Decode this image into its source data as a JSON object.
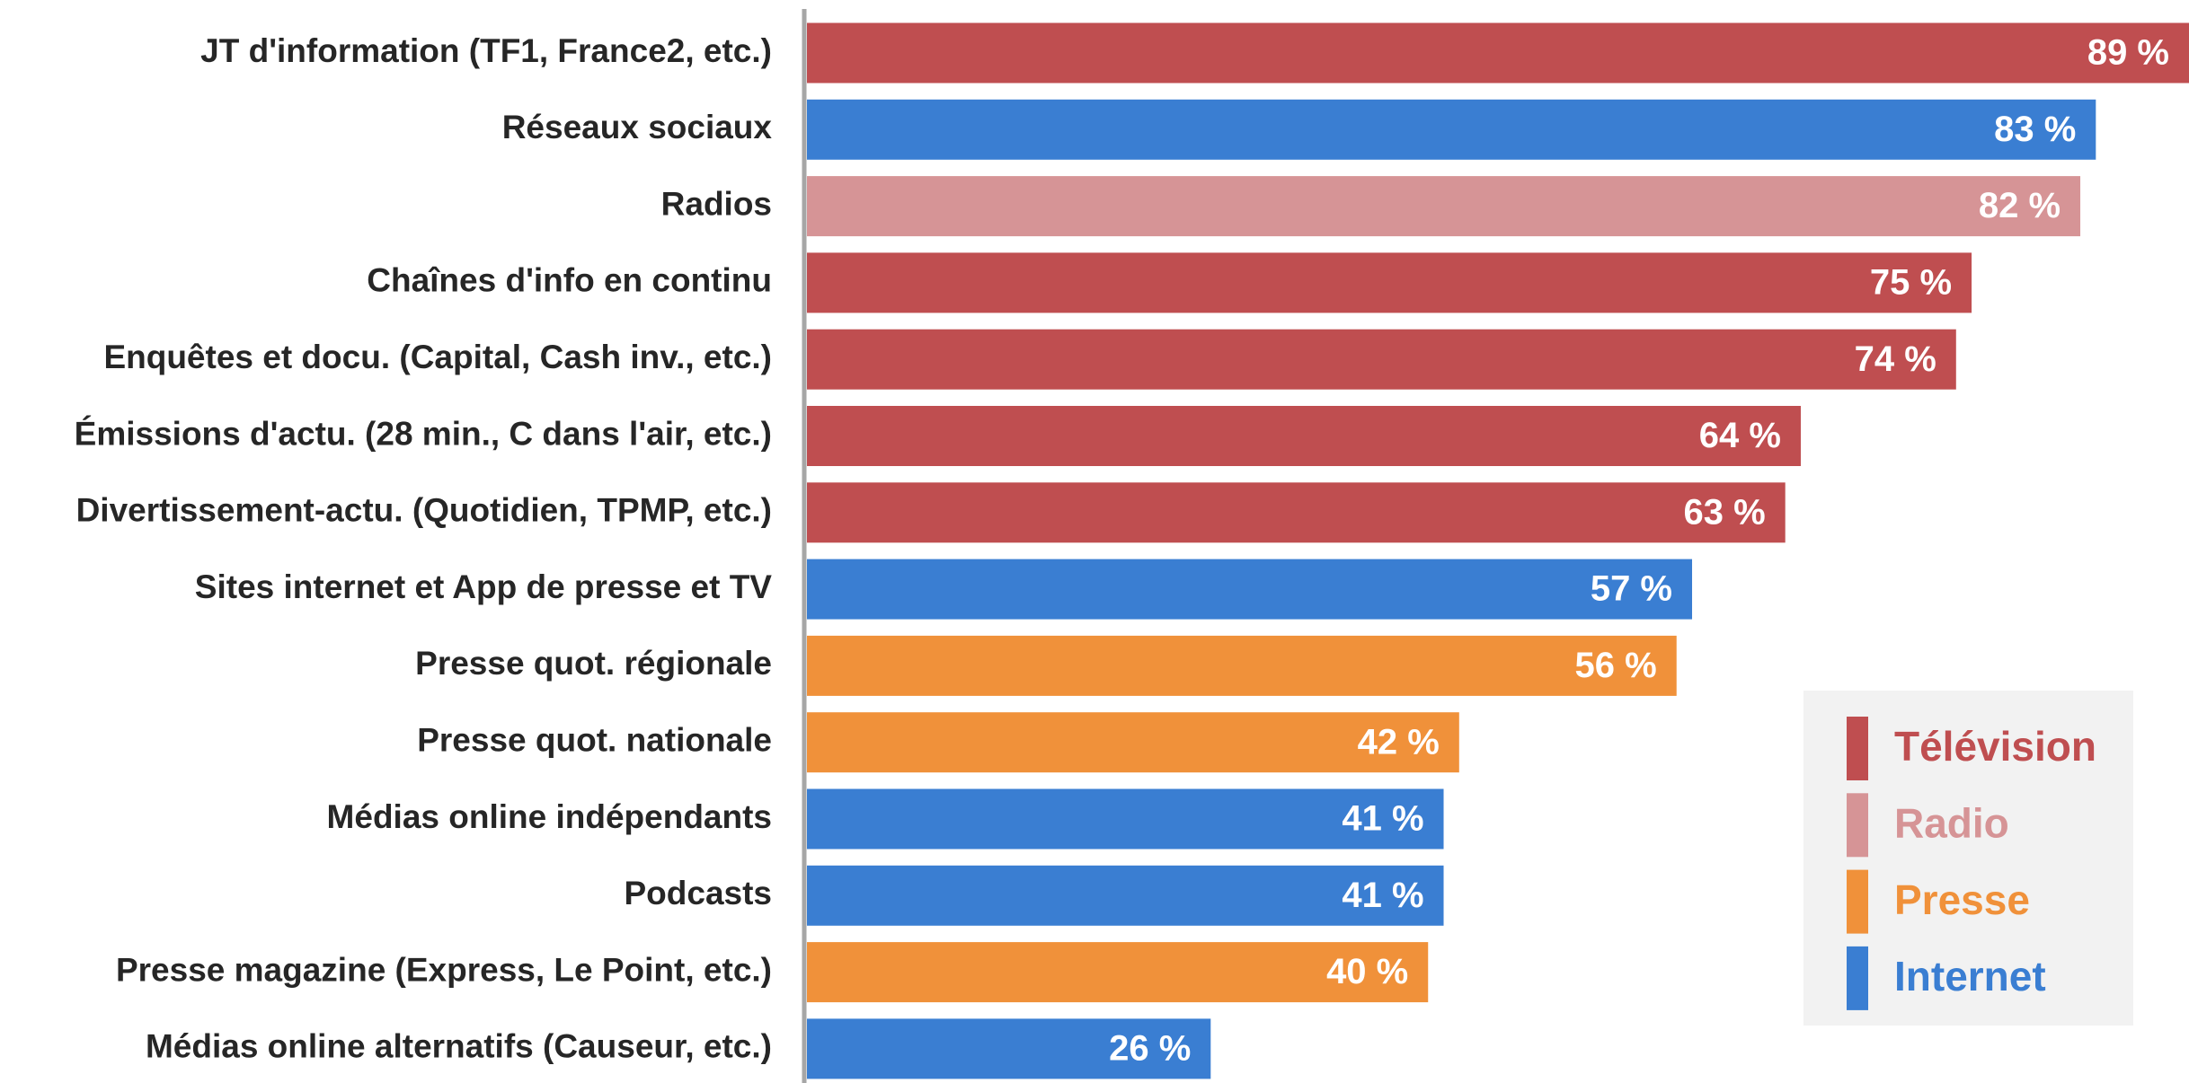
{
  "chart_data": {
    "type": "bar",
    "orientation": "horizontal",
    "categories": [
      "JT d'information (TF1, France2, etc.)",
      "Réseaux sociaux",
      "Radios",
      "Chaînes d'info en continu",
      "Enquêtes et docu. (Capital, Cash inv., etc.)",
      "Émissions d'actu. (28 min., C dans l'air, etc.)",
      "Divertissement-actu. (Quotidien, TPMP, etc.)",
      "Sites internet et App de presse et TV",
      "Presse quot. régionale",
      "Presse quot. nationale",
      "Médias online indépendants",
      "Podcasts",
      "Presse magazine (Express, Le Point, etc.)",
      "Médias online alternatifs (Causeur, etc.)"
    ],
    "series": [
      {
        "name": "Télévision",
        "color": "#bf4e50",
        "values": [
          89,
          null,
          null,
          75,
          74,
          64,
          63,
          null,
          null,
          null,
          null,
          null,
          null,
          null
        ],
        "value_labels": [
          "89 %",
          null,
          null,
          "75 %",
          "74 %",
          "64 %",
          "63 %",
          null,
          null,
          null,
          null,
          null,
          null,
          null
        ]
      },
      {
        "name": "Radio",
        "color": "#d69496",
        "values": [
          null,
          null,
          82,
          null,
          null,
          null,
          null,
          null,
          null,
          null,
          null,
          null,
          null,
          null
        ],
        "value_labels": [
          null,
          null,
          "82 %",
          null,
          null,
          null,
          null,
          null,
          null,
          null,
          null,
          null,
          null,
          null
        ]
      },
      {
        "name": "Presse",
        "color": "#f0913a",
        "values": [
          null,
          null,
          null,
          null,
          null,
          null,
          null,
          null,
          56,
          42,
          null,
          null,
          40,
          null
        ],
        "value_labels": [
          null,
          null,
          null,
          null,
          null,
          null,
          null,
          null,
          "56 %",
          "42 %",
          null,
          null,
          "40 %",
          null
        ]
      },
      {
        "name": "Internet",
        "color": "#3a7ed2",
        "values": [
          null,
          83,
          null,
          null,
          null,
          null,
          null,
          57,
          null,
          null,
          41,
          41,
          null,
          26
        ],
        "value_labels": [
          null,
          "83 %",
          null,
          null,
          null,
          null,
          null,
          "57 %",
          null,
          null,
          "41 %",
          "41 %",
          null,
          "26 %"
        ]
      }
    ],
    "xlim": [
      0,
      89
    ],
    "legend": "lower right"
  }
}
